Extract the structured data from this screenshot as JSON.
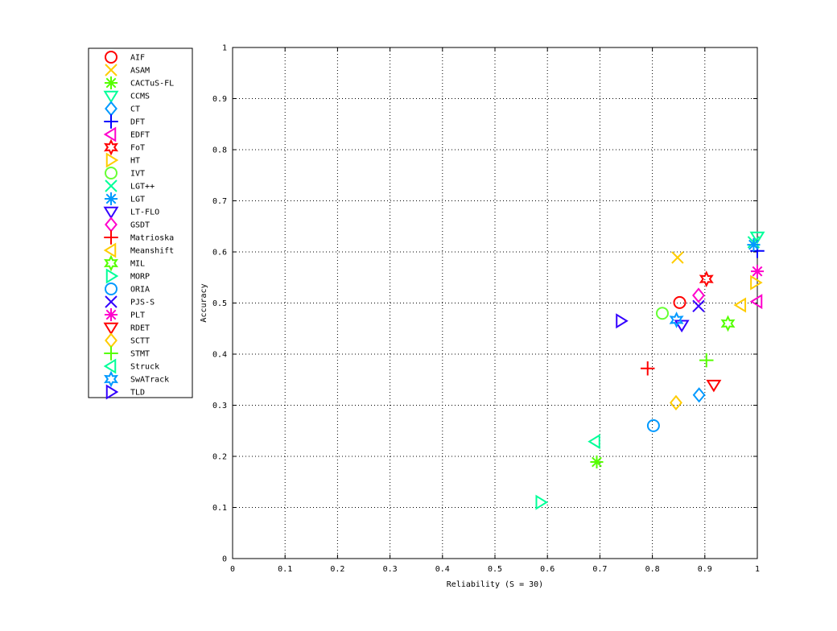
{
  "chart_data": {
    "type": "scatter",
    "title": "",
    "xlabel": "Reliability (S = 30)",
    "ylabel": "Accuracy",
    "xlim": [
      0,
      1
    ],
    "ylim": [
      0,
      1
    ],
    "xticks": [
      "0",
      "0.1",
      "0.2",
      "0.3",
      "0.4",
      "0.5",
      "0.6",
      "0.7",
      "0.8",
      "0.9",
      "1"
    ],
    "yticks": [
      "0",
      "0.1",
      "0.2",
      "0.3",
      "0.4",
      "0.5",
      "0.6",
      "0.7",
      "0.8",
      "0.9",
      "1"
    ],
    "grid": true,
    "legend_position": "outside-left",
    "series": [
      {
        "name": "AIF",
        "marker": "circle",
        "color": "#ff0000",
        "x": 0.852,
        "y": 0.501
      },
      {
        "name": "ASAM",
        "marker": "x",
        "color": "#ffcc00",
        "x": 0.848,
        "y": 0.589
      },
      {
        "name": "CACTuS-FL",
        "marker": "asterisk",
        "color": "#55ff00",
        "x": 0.694,
        "y": 0.189
      },
      {
        "name": "CCMS",
        "marker": "triangle-down",
        "color": "#00ff99",
        "x": 1.0,
        "y": 0.63
      },
      {
        "name": "CT",
        "marker": "diamond",
        "color": "#0099ff",
        "x": 0.889,
        "y": 0.32
      },
      {
        "name": "DFT",
        "marker": "plus",
        "color": "#0000ff",
        "x": 1.0,
        "y": 0.602
      },
      {
        "name": "EDFT",
        "marker": "triangle-left",
        "color": "#ff00cc",
        "x": 1.0,
        "y": 0.503
      },
      {
        "name": "FoT",
        "marker": "hexagram",
        "color": "#ff0000",
        "x": 0.903,
        "y": 0.547
      },
      {
        "name": "HT",
        "marker": "triangle-right",
        "color": "#ffcc00",
        "x": 0.996,
        "y": 0.54
      },
      {
        "name": "IVT",
        "marker": "circle",
        "color": "#66ff33",
        "x": 0.819,
        "y": 0.48
      },
      {
        "name": "LGT++",
        "marker": "x",
        "color": "#00ff99",
        "x": 0.993,
        "y": 0.619
      },
      {
        "name": "LGT",
        "marker": "asterisk",
        "color": "#0099ff",
        "x": 0.993,
        "y": 0.614
      },
      {
        "name": "LT-FLO",
        "marker": "triangle-down",
        "color": "#3300ff",
        "x": 0.856,
        "y": 0.457
      },
      {
        "name": "GSDT",
        "marker": "diamond",
        "color": "#ff00cc",
        "x": 0.888,
        "y": 0.515
      },
      {
        "name": "Matrioska",
        "marker": "plus",
        "color": "#ff0000",
        "x": 0.791,
        "y": 0.372
      },
      {
        "name": "Meanshift",
        "marker": "triangle-left",
        "color": "#ffcc00",
        "x": 0.969,
        "y": 0.496
      },
      {
        "name": "MIL",
        "marker": "hexagram",
        "color": "#55ff00",
        "x": 0.944,
        "y": 0.46
      },
      {
        "name": "MORP",
        "marker": "triangle-right",
        "color": "#00ff99",
        "x": 0.587,
        "y": 0.11
      },
      {
        "name": "ORIA",
        "marker": "circle",
        "color": "#0099ff",
        "x": 0.802,
        "y": 0.26
      },
      {
        "name": "PJS-S",
        "marker": "x",
        "color": "#3300ff",
        "x": 0.888,
        "y": 0.494
      },
      {
        "name": "PLT",
        "marker": "asterisk",
        "color": "#ff00cc",
        "x": 1.0,
        "y": 0.562
      },
      {
        "name": "RDET",
        "marker": "triangle-down",
        "color": "#ff0000",
        "x": 0.917,
        "y": 0.34
      },
      {
        "name": "SCTT",
        "marker": "diamond",
        "color": "#ffcc00",
        "x": 0.845,
        "y": 0.305
      },
      {
        "name": "STMT",
        "marker": "plus",
        "color": "#55ff00",
        "x": 0.903,
        "y": 0.388
      },
      {
        "name": "Struck",
        "marker": "triangle-left",
        "color": "#00ff99",
        "x": 0.691,
        "y": 0.229
      },
      {
        "name": "SwATrack",
        "marker": "hexagram",
        "color": "#0099ff",
        "x": 0.846,
        "y": 0.467
      },
      {
        "name": "TLD",
        "marker": "triangle-right",
        "color": "#3300ff",
        "x": 0.74,
        "y": 0.465
      }
    ]
  }
}
